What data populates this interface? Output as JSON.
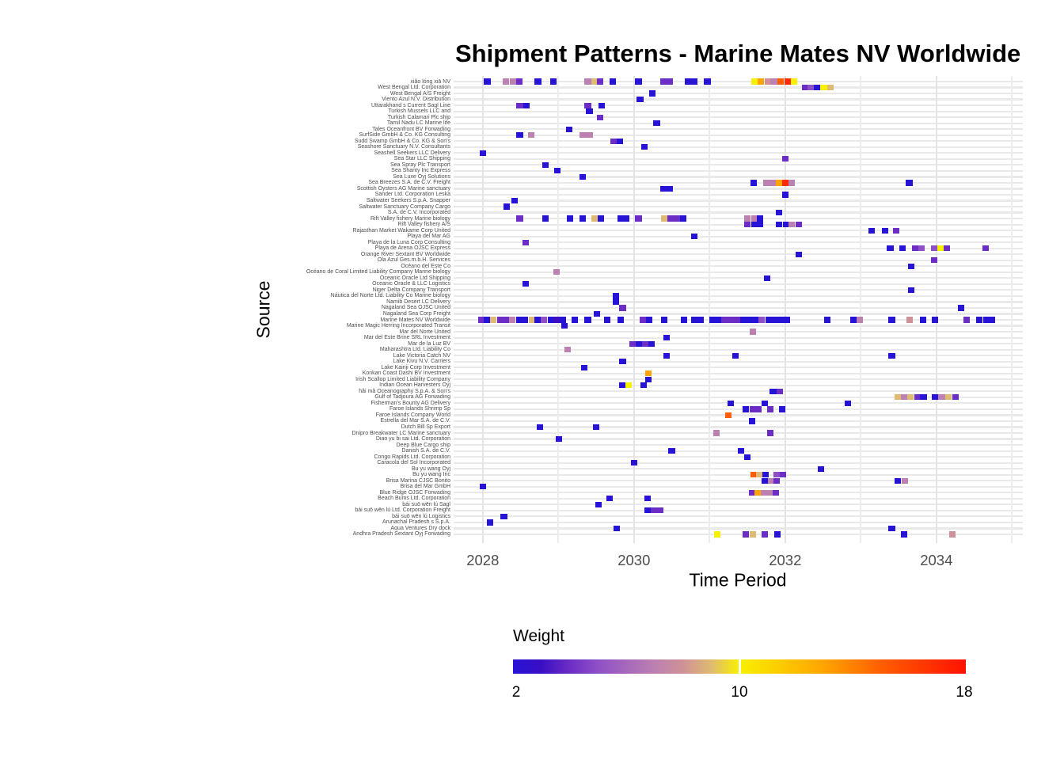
{
  "title": "Shipment Patterns - Marine Mates NV Worldwide",
  "axes": {
    "x_label": "Time Period",
    "y_label": "Source",
    "x_ticks": [
      2028,
      2030,
      2032,
      2034
    ]
  },
  "legend": {
    "title": "Weight",
    "min_label": "2",
    "mid_label": "10",
    "max_label": "18",
    "min": 2,
    "max": 18
  },
  "colors": {
    "tick_label": "#4d4d4d",
    "gridline_major": "#e4e4e4",
    "gridline_minor": "#ececec",
    "gridline_row": "#e9e9e9",
    "colormap_stops": [
      [
        0.0,
        "#2713D6"
      ],
      [
        0.0625,
        "#3A0FC4"
      ],
      [
        0.125,
        "#6B2DC5"
      ],
      [
        0.1875,
        "#8F50C6"
      ],
      [
        0.3125,
        "#BC80B1"
      ],
      [
        0.375,
        "#CE9197"
      ],
      [
        0.4375,
        "#DFBA72"
      ],
      [
        0.5,
        "#F8F000"
      ],
      [
        0.6875,
        "#FFA400"
      ],
      [
        0.8125,
        "#FF5E00"
      ],
      [
        1.0,
        "#FF1200"
      ]
    ]
  },
  "chart_data": {
    "type": "heatmap",
    "title": "Shipment Patterns - Marine Mates NV Worldwide",
    "xlabel": "Time Period",
    "ylabel": "Source",
    "x_range": [
      2027.6,
      2035.15
    ],
    "grid": true,
    "weight_scale": {
      "min": 2,
      "mid": 10,
      "max": 18
    },
    "sources": [
      "xiǎo lóng xiā NV",
      "West Bengal  Ltd. Corporation",
      "West Bengal  A/S Freight",
      "Viento Azul N.V. Distribution",
      "Uttarakhand s Current Sagl Line",
      "Turkish Mussels LLC and",
      "Turkish Calamari Plc ship",
      "Tamil Nadu   LC Marine life",
      "Tales Oceanfront BV Forwading",
      "SurfSide  GmbH & Co. KG Consulting",
      "Sudd Swamp   GmbH & Co. KG & Son's",
      "Seashore Sanctuary N.V. Consultants",
      "Seashell Seekers LLC Delivery",
      "Sea Star LLC Shipping",
      "Sea Spray Plc Transport",
      "Sea Shanty Inc Express",
      "Sea Luxe Oyj Solutions",
      "Sea Breezes S.A. de C.V. Freight",
      "Scottish Oysters AG Marine sanctuary",
      "Sander Ltd. Corporation Leska",
      "Saltwater Seekers S.p.A. Snapper",
      "Saltwater Sanctuary Company Cargo",
      "S.A. de C.V. Incorporated",
      "Rift Valley fishery Marine biology",
      "Rift Valley fishery A/S",
      "Rajasthan  Market Wakame Corp United",
      "Playa del Mar AG",
      "Playa de la Luna Corp Consulting",
      "Playa de Arena OJSC Express",
      "Orange River  Sextant BV Worldwide",
      "Ola Azul Ges.m.b.H. Services",
      "Océano del Este Co",
      "Océano de Coral Limited Liability Company Marine biology",
      "Oceanic Oracle Ltd Shipping",
      "Oceanic Oracle & LLC Logistics",
      "Niger Delta   Company Transport",
      "Náutica del Norte Ltd. Liability Co Marine biology",
      "Namib Desert  LC Delivery",
      "Nagaland Sea  OJSC United",
      "Nagaland Sea  Corp Freight",
      "Marine Mates NV Worldwide",
      "Marine Magic Herring Incorporated Transit",
      "Mar del Norte United",
      "Mar del Este Brine SRL Investment",
      "Mar de la Luz BV",
      "Maharashtra   Ltd. Liability Co",
      "Lake Victoria Catch  NV",
      "Lake Kivu   N.V. Carriers",
      "Lake Kainji  Corp Investment",
      "Konkan Coast  Dashi BV Investment",
      "Irish Scallop Limited Liability Company",
      "Indian Ocean Harvesters Oyj",
      "hǎi mǎ Oceanography S.p.A. & Son's",
      "Gulf of Tadjoura  AG Forwading",
      "Fisherman's Bounty AG Delivery",
      "Faroe Islands Shrimp Sp",
      "Faroe Islands  Company World",
      "Estrella del Mar S.A. de C.V.",
      "Dutch Bill  Sp Export",
      "Dnipro  Breakwater LC Marine sanctuary",
      "Diao yu bi sai  Ltd. Corporation",
      "Deep Blue Cargo ship",
      "Danish  S.A. de C.V.",
      "Congo Rapids   Ltd. Corporation",
      "Caracola del Sol Incorporated",
      "Bu yu wang Oyj",
      "Bu yu wang Inc",
      "Brisa Marina CJSC Bonito",
      "Brisa del Mar GmbH",
      "Blue Ridge   OJSC Forwading",
      "Beach Bums Ltd. Corporation",
      "bái suō wēn lú Sagl",
      "bái suō wēn lú Ltd. Corporation Freight",
      "bái suō wēn lú Logistics",
      "Arunachal Pradesh s S.p.A.",
      "Aqua Ventures Dry dock",
      "Andhra Pradesh   Sextant Oyj Forwading"
    ],
    "points": [
      [
        0,
        2028.06,
        2
      ],
      [
        0,
        2028.31,
        7
      ],
      [
        0,
        2028.4,
        7
      ],
      [
        0,
        2028.48,
        4
      ],
      [
        0,
        2028.73,
        2
      ],
      [
        0,
        2028.93,
        2
      ],
      [
        0,
        2029.39,
        7
      ],
      [
        0,
        2029.48,
        9
      ],
      [
        0,
        2029.55,
        4
      ],
      [
        0,
        2029.72,
        2
      ],
      [
        0,
        2030.06,
        2
      ],
      [
        0,
        2030.39,
        4
      ],
      [
        0,
        2030.47,
        4
      ],
      [
        0,
        2030.72,
        2
      ],
      [
        0,
        2030.8,
        2
      ],
      [
        0,
        2030.97,
        2
      ],
      [
        0,
        2031.59,
        10
      ],
      [
        0,
        2031.68,
        13
      ],
      [
        0,
        2031.77,
        8
      ],
      [
        0,
        2031.85,
        7
      ],
      [
        0,
        2031.94,
        15
      ],
      [
        0,
        2032.03,
        17
      ],
      [
        0,
        2032.12,
        10
      ],
      [
        1,
        2032.26,
        4
      ],
      [
        1,
        2032.34,
        5
      ],
      [
        1,
        2032.42,
        2
      ],
      [
        1,
        2032.51,
        10
      ],
      [
        1,
        2032.6,
        9
      ],
      [
        2,
        2030.24,
        2
      ],
      [
        3,
        2030.08,
        2
      ],
      [
        4,
        2028.49,
        4
      ],
      [
        4,
        2028.58,
        2
      ],
      [
        4,
        2029.39,
        4
      ],
      [
        4,
        2029.57,
        2
      ],
      [
        5,
        2029.41,
        2
      ],
      [
        6,
        2029.55,
        4
      ],
      [
        7,
        2030.3,
        2
      ],
      [
        8,
        2029.14,
        2
      ],
      [
        9,
        2028.49,
        2
      ],
      [
        9,
        2028.64,
        7
      ],
      [
        9,
        2029.32,
        7
      ],
      [
        9,
        2029.41,
        7
      ],
      [
        10,
        2029.73,
        4
      ],
      [
        10,
        2029.81,
        2
      ],
      [
        11,
        2030.14,
        2
      ],
      [
        12,
        2028.0,
        2
      ],
      [
        13,
        2032.0,
        4
      ],
      [
        14,
        2028.83,
        2
      ],
      [
        15,
        2028.99,
        2
      ],
      [
        16,
        2029.32,
        2
      ],
      [
        17,
        2031.58,
        2
      ],
      [
        17,
        2031.75,
        7
      ],
      [
        17,
        2031.84,
        7
      ],
      [
        17,
        2031.92,
        13
      ],
      [
        17,
        2032.0,
        17
      ],
      [
        17,
        2032.09,
        7
      ],
      [
        17,
        2033.64,
        2
      ],
      [
        18,
        2030.39,
        2
      ],
      [
        18,
        2030.47,
        2
      ],
      [
        19,
        2032.0,
        2
      ],
      [
        20,
        2028.42,
        2
      ],
      [
        21,
        2028.32,
        2
      ],
      [
        22,
        2031.92,
        2
      ],
      [
        23,
        2028.49,
        4
      ],
      [
        23,
        2028.83,
        2
      ],
      [
        23,
        2029.15,
        2
      ],
      [
        23,
        2029.32,
        2
      ],
      [
        23,
        2029.48,
        9
      ],
      [
        23,
        2029.56,
        2
      ],
      [
        23,
        2029.82,
        2
      ],
      [
        23,
        2029.9,
        2
      ],
      [
        23,
        2030.06,
        4
      ],
      [
        23,
        2030.4,
        9
      ],
      [
        23,
        2030.48,
        4
      ],
      [
        23,
        2030.57,
        4
      ],
      [
        23,
        2030.65,
        2
      ],
      [
        23,
        2031.5,
        7
      ],
      [
        23,
        2031.59,
        7
      ],
      [
        23,
        2031.67,
        2
      ],
      [
        24,
        2031.5,
        4
      ],
      [
        24,
        2031.59,
        2
      ],
      [
        24,
        2031.67,
        2
      ],
      [
        24,
        2031.92,
        2
      ],
      [
        24,
        2032.01,
        2
      ],
      [
        24,
        2032.09,
        7
      ],
      [
        24,
        2032.18,
        4
      ],
      [
        25,
        2033.14,
        2
      ],
      [
        25,
        2033.32,
        2
      ],
      [
        25,
        2033.47,
        4
      ],
      [
        26,
        2030.8,
        2
      ],
      [
        27,
        2028.57,
        4
      ],
      [
        28,
        2033.39,
        2
      ],
      [
        28,
        2033.55,
        2
      ],
      [
        28,
        2033.72,
        4
      ],
      [
        28,
        2033.8,
        5
      ],
      [
        28,
        2033.97,
        5
      ],
      [
        28,
        2034.06,
        10
      ],
      [
        28,
        2034.14,
        4
      ],
      [
        28,
        2034.65,
        4
      ],
      [
        29,
        2032.18,
        2
      ],
      [
        30,
        2033.97,
        4
      ],
      [
        31,
        2033.67,
        2
      ],
      [
        32,
        2028.98,
        7
      ],
      [
        33,
        2031.76,
        2
      ],
      [
        34,
        2028.57,
        2
      ],
      [
        35,
        2033.67,
        2
      ],
      [
        36,
        2029.76,
        2
      ],
      [
        37,
        2029.76,
        2
      ],
      [
        38,
        2029.85,
        4
      ],
      [
        38,
        2034.33,
        2
      ],
      [
        39,
        2029.51,
        2
      ],
      [
        40,
        2027.98,
        4
      ],
      [
        40,
        2028.06,
        2
      ],
      [
        40,
        2028.14,
        9
      ],
      [
        40,
        2028.23,
        4
      ],
      [
        40,
        2028.31,
        4
      ],
      [
        40,
        2028.39,
        7
      ],
      [
        40,
        2028.48,
        2
      ],
      [
        40,
        2028.56,
        2
      ],
      [
        40,
        2028.65,
        9
      ],
      [
        40,
        2028.73,
        2
      ],
      [
        40,
        2028.81,
        5
      ],
      [
        40,
        2028.9,
        2
      ],
      [
        40,
        2028.98,
        3
      ],
      [
        40,
        2029.06,
        2
      ],
      [
        40,
        2029.22,
        2
      ],
      [
        40,
        2029.39,
        2
      ],
      [
        40,
        2029.65,
        2
      ],
      [
        40,
        2029.82,
        2
      ],
      [
        40,
        2030.12,
        4
      ],
      [
        40,
        2030.2,
        2
      ],
      [
        40,
        2030.4,
        2
      ],
      [
        40,
        2030.66,
        2
      ],
      [
        40,
        2030.8,
        2
      ],
      [
        40,
        2030.88,
        2
      ],
      [
        40,
        2031.04,
        2
      ],
      [
        40,
        2031.12,
        2
      ],
      [
        40,
        2031.2,
        4
      ],
      [
        40,
        2031.28,
        4
      ],
      [
        40,
        2031.36,
        4
      ],
      [
        40,
        2031.45,
        2
      ],
      [
        40,
        2031.53,
        2
      ],
      [
        40,
        2031.61,
        2
      ],
      [
        40,
        2031.69,
        5
      ],
      [
        40,
        2031.78,
        2
      ],
      [
        40,
        2031.86,
        2
      ],
      [
        40,
        2031.94,
        2
      ],
      [
        40,
        2032.02,
        2
      ],
      [
        40,
        2032.56,
        2
      ],
      [
        40,
        2032.9,
        2
      ],
      [
        40,
        2032.99,
        7
      ],
      [
        40,
        2033.41,
        2
      ],
      [
        40,
        2033.65,
        8
      ],
      [
        40,
        2033.82,
        2
      ],
      [
        40,
        2033.98,
        2
      ],
      [
        40,
        2034.4,
        4
      ],
      [
        40,
        2034.57,
        2
      ],
      [
        40,
        2034.66,
        2
      ],
      [
        40,
        2034.73,
        2
      ],
      [
        41,
        2029.08,
        2
      ],
      [
        42,
        2031.57,
        7
      ],
      [
        43,
        2030.43,
        2
      ],
      [
        44,
        2029.98,
        4
      ],
      [
        44,
        2030.07,
        2
      ],
      [
        44,
        2030.15,
        4
      ],
      [
        44,
        2030.23,
        2
      ],
      [
        45,
        2029.12,
        7
      ],
      [
        46,
        2030.43,
        2
      ],
      [
        46,
        2031.34,
        2
      ],
      [
        46,
        2033.41,
        2
      ],
      [
        47,
        2029.85,
        2
      ],
      [
        48,
        2029.34,
        2
      ],
      [
        49,
        2030.19,
        13
      ],
      [
        50,
        2030.19,
        2
      ],
      [
        51,
        2029.85,
        2
      ],
      [
        51,
        2029.93,
        10
      ],
      [
        51,
        2030.13,
        2
      ],
      [
        52,
        2031.84,
        2
      ],
      [
        52,
        2031.93,
        4
      ],
      [
        53,
        2033.49,
        9
      ],
      [
        53,
        2033.57,
        7
      ],
      [
        53,
        2033.66,
        9
      ],
      [
        53,
        2033.75,
        4
      ],
      [
        53,
        2033.83,
        2
      ],
      [
        53,
        2033.98,
        2
      ],
      [
        53,
        2034.07,
        7
      ],
      [
        53,
        2034.16,
        9
      ],
      [
        53,
        2034.25,
        4
      ],
      [
        54,
        2031.28,
        2
      ],
      [
        54,
        2031.73,
        2
      ],
      [
        54,
        2032.83,
        2
      ],
      [
        55,
        2031.48,
        2
      ],
      [
        55,
        2031.57,
        4
      ],
      [
        55,
        2031.65,
        4
      ],
      [
        55,
        2031.8,
        4
      ],
      [
        55,
        2031.96,
        2
      ],
      [
        56,
        2031.25,
        15
      ],
      [
        57,
        2031.56,
        2
      ],
      [
        58,
        2028.76,
        2
      ],
      [
        58,
        2029.5,
        2
      ],
      [
        59,
        2031.09,
        7
      ],
      [
        59,
        2031.8,
        4
      ],
      [
        60,
        2029.01,
        2
      ],
      [
        62,
        2030.5,
        2
      ],
      [
        62,
        2031.42,
        2
      ],
      [
        63,
        2031.5,
        2
      ],
      [
        64,
        2030.0,
        2
      ],
      [
        65,
        2032.47,
        2
      ],
      [
        66,
        2031.58,
        15
      ],
      [
        66,
        2031.66,
        9
      ],
      [
        66,
        2031.74,
        2
      ],
      [
        66,
        2031.89,
        5
      ],
      [
        66,
        2031.97,
        4
      ],
      [
        67,
        2031.73,
        2
      ],
      [
        67,
        2031.81,
        7
      ],
      [
        67,
        2031.89,
        4
      ],
      [
        67,
        2033.49,
        2
      ],
      [
        67,
        2033.58,
        7
      ],
      [
        68,
        2028.0,
        2
      ],
      [
        69,
        2031.56,
        4
      ],
      [
        69,
        2031.64,
        13
      ],
      [
        69,
        2031.72,
        7
      ],
      [
        69,
        2031.8,
        7
      ],
      [
        69,
        2031.88,
        4
      ],
      [
        70,
        2029.68,
        2
      ],
      [
        70,
        2030.18,
        2
      ],
      [
        71,
        2029.53,
        2
      ],
      [
        72,
        2030.18,
        2
      ],
      [
        72,
        2030.27,
        4
      ],
      [
        72,
        2030.35,
        4
      ],
      [
        73,
        2028.28,
        2
      ],
      [
        74,
        2028.1,
        2
      ],
      [
        75,
        2029.77,
        2
      ],
      [
        75,
        2033.41,
        2
      ],
      [
        76,
        2031.1,
        10
      ],
      [
        76,
        2031.48,
        4
      ],
      [
        76,
        2031.57,
        9
      ],
      [
        76,
        2031.73,
        4
      ],
      [
        76,
        2031.9,
        2
      ],
      [
        76,
        2033.57,
        2
      ],
      [
        76,
        2034.21,
        8
      ]
    ]
  }
}
